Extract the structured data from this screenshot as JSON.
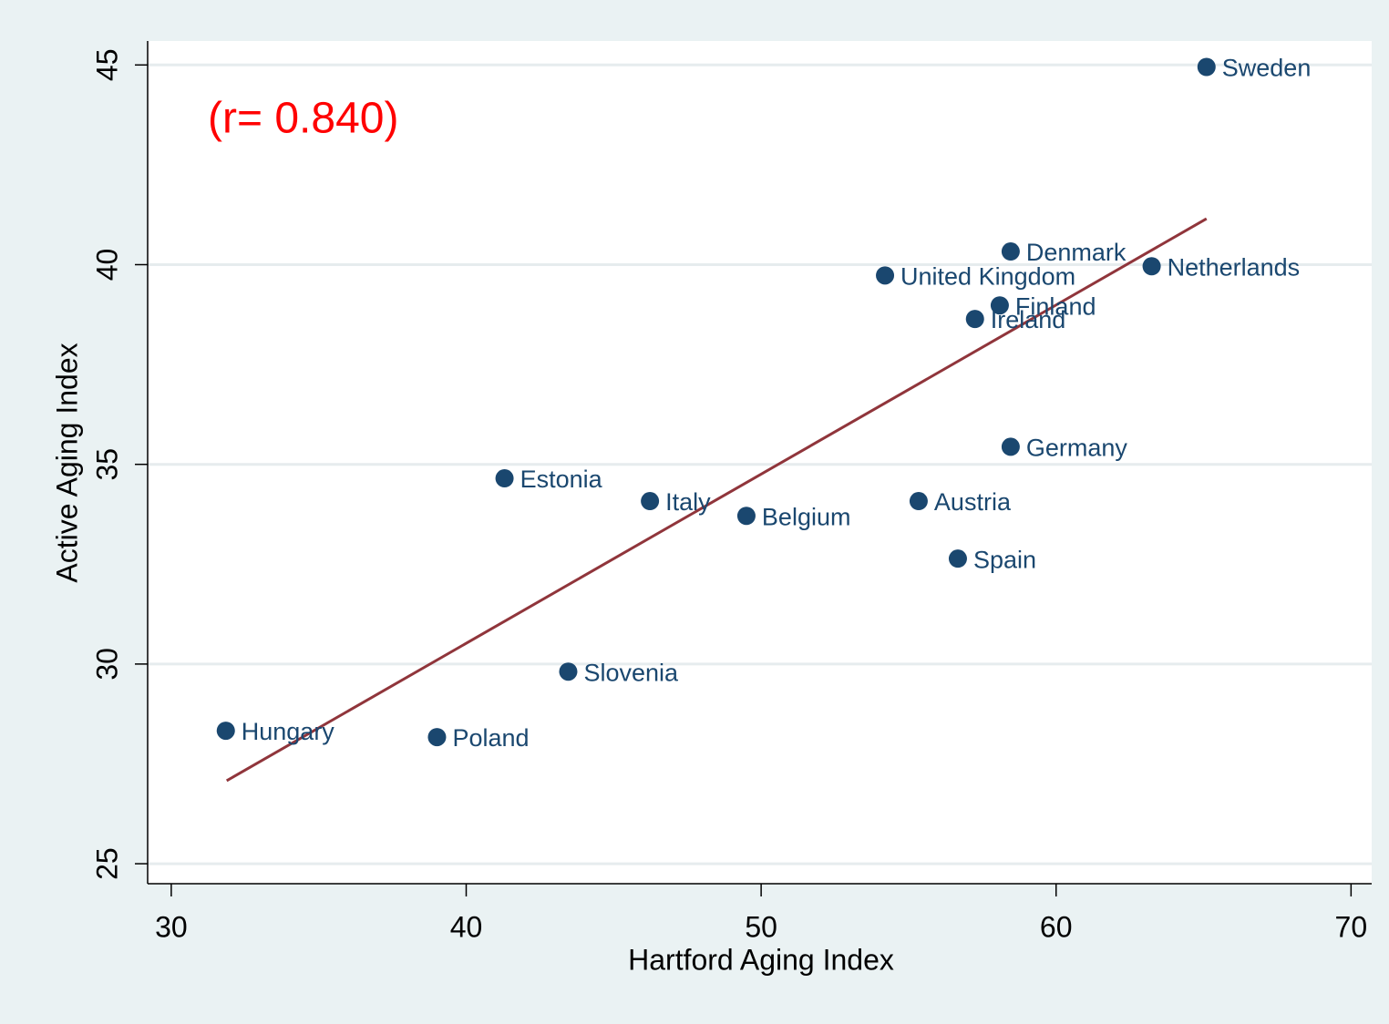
{
  "chart_data": {
    "type": "scatter",
    "annotation": "(r= 0.840)",
    "xlabel": "Hartford Aging Index",
    "ylabel": "Active Aging Index",
    "xlim": [
      29.2,
      70.7
    ],
    "xticks": [
      30,
      40,
      50,
      60,
      70
    ],
    "ylim": [
      24.5,
      45.6
    ],
    "yticks": [
      25,
      30,
      35,
      40,
      45
    ],
    "grid": true,
    "series": [
      {
        "color": "#1a476f",
        "labels": [
          "Sweden",
          "Denmark",
          "Netherlands",
          "United Kingdom",
          "Finland",
          "Ireland",
          "Germany",
          "Estonia",
          "Italy",
          "Austria",
          "Belgium",
          "Spain",
          "Slovenia",
          "Hungary",
          "Poland"
        ],
        "x": [
          65.1,
          58.46,
          63.24,
          54.2,
          58.09,
          57.25,
          58.46,
          41.3,
          46.23,
          55.34,
          49.5,
          56.67,
          43.46,
          31.85,
          39.01
        ],
        "values": [
          44.95,
          40.33,
          39.96,
          39.73,
          38.98,
          38.64,
          35.44,
          34.65,
          34.08,
          34.08,
          33.71,
          32.64,
          29.81,
          28.33,
          28.17
        ]
      }
    ],
    "fit_line": {
      "color": "#90353b",
      "x": [
        31.88,
        65.1
      ],
      "values": [
        27.08,
        41.15
      ]
    }
  }
}
